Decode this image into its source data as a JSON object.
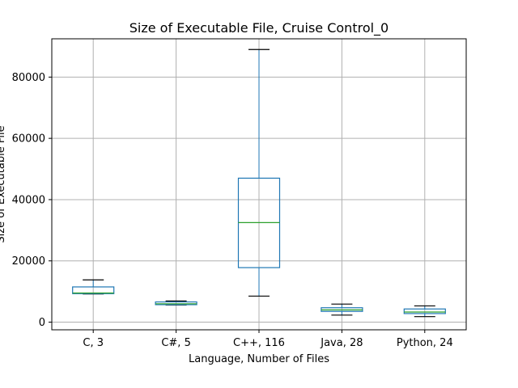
{
  "chart_data": {
    "type": "boxplot",
    "title": "Size of Executable File, Cruise Control_0",
    "xlabel": "Language, Number of Files",
    "ylabel": "Size of Executable File",
    "ylim": [
      -2500,
      92500
    ],
    "yticks": [
      0,
      20000,
      40000,
      60000,
      80000
    ],
    "ytick_labels": [
      "0",
      "20000",
      "40000",
      "60000",
      "80000"
    ],
    "grid": true,
    "colors": {
      "box": "#1f77b4",
      "median": "#2ca02c",
      "cap": "#000000",
      "grid": "#b0b0b0"
    },
    "categories": [
      "C, 3",
      "C#, 5",
      "C++, 116",
      "Java, 28",
      "Python, 24"
    ],
    "boxes": [
      {
        "min": 9200,
        "q1": 9300,
        "median": 9500,
        "q3": 11500,
        "max": 13800
      },
      {
        "min": 5600,
        "q1": 5700,
        "median": 6000,
        "q3": 6600,
        "max": 6900
      },
      {
        "min": 8500,
        "q1": 17800,
        "median": 32500,
        "q3": 47000,
        "max": 89000
      },
      {
        "min": 2300,
        "q1": 3500,
        "median": 4000,
        "q3": 4700,
        "max": 5900
      },
      {
        "min": 1800,
        "q1": 2800,
        "median": 3300,
        "q3": 4300,
        "max": 5300
      }
    ]
  }
}
